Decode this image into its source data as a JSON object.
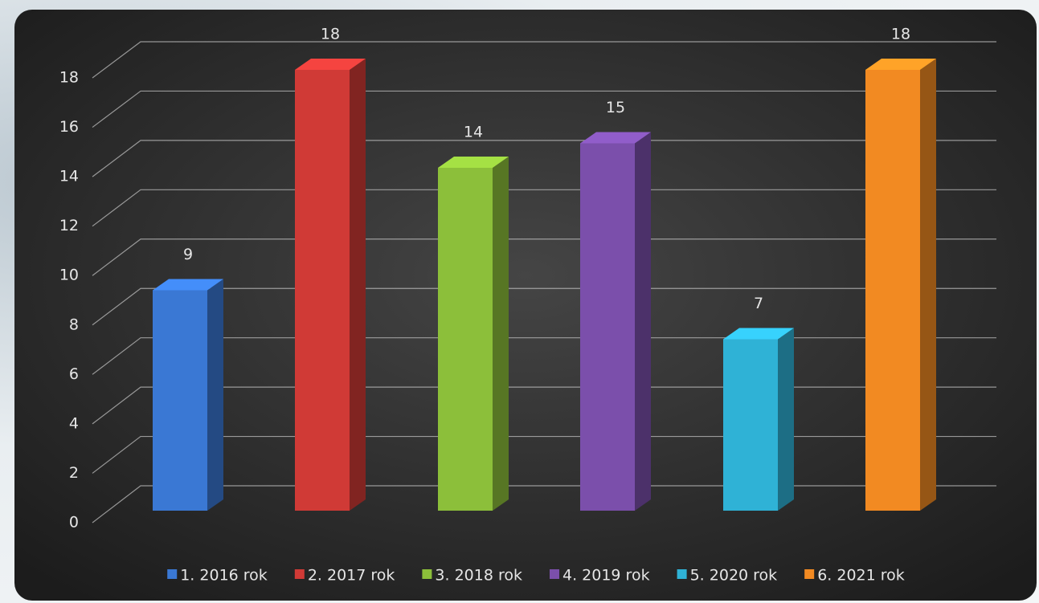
{
  "chart_data": {
    "type": "bar3d",
    "series": [
      {
        "name": "1. 2016 rok",
        "color": "#3a78d4",
        "values": [
          9
        ]
      },
      {
        "name": "2. 2017 rok",
        "color": "#d03a36",
        "values": [
          18
        ]
      },
      {
        "name": "3. 2018 rok",
        "color": "#8cbf3a",
        "values": [
          14
        ]
      },
      {
        "name": "4. 2019 rok",
        "color": "#7b4fab",
        "values": [
          15
        ]
      },
      {
        "name": "5. 2020 rok",
        "color": "#2fb2d6",
        "values": [
          7
        ]
      },
      {
        "name": "6. 2021 rok",
        "color": "#f28a22",
        "values": [
          18
        ]
      }
    ],
    "ylim": [
      0,
      18
    ],
    "yticks": [
      0,
      2,
      4,
      6,
      8,
      10,
      12,
      14,
      16,
      18
    ],
    "grid": true,
    "legend": "bottom"
  }
}
